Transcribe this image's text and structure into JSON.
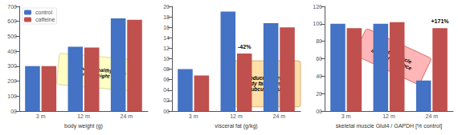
{
  "chart_data": [
    {
      "type": "bar",
      "categories": [
        "3 m",
        "12 m",
        "24 m"
      ],
      "series": [
        {
          "name": "control",
          "color": "#4472C4",
          "values": [
            300,
            430,
            620
          ]
        },
        {
          "name": "caffeine",
          "color": "#C0504D",
          "values": [
            300,
            425,
            610
          ]
        }
      ],
      "xlabel": "body weight (g)",
      "ylim": [
        0,
        700
      ],
      "yticks": [
        {
          "value": 0,
          "label": "00"
        },
        100,
        200,
        300,
        400,
        500,
        600,
        700
      ],
      "grid": false,
      "legend": "upper left",
      "annotations": [
        {
          "text": "normal (=healthy) diet,\nnormal weight gain"
        }
      ]
    },
    {
      "type": "bar",
      "categories": [
        "3 m",
        "12 m",
        "24 m"
      ],
      "series": [
        {
          "name": "control",
          "color": "#4472C4",
          "values": [
            8.0,
            19.0,
            16.8
          ]
        },
        {
          "name": "caffeine",
          "color": "#C0504D",
          "values": [
            6.8,
            11.0,
            16.0
          ]
        }
      ],
      "xlabel": "visceral fat (g/kg)",
      "ylim": [
        0,
        20
      ],
      "yticks": [
        {
          "value": 0,
          "label": "00"
        },
        {
          "value": 2,
          "label": "02"
        },
        {
          "value": 4,
          "label": "04"
        },
        {
          "value": 6,
          "label": "06"
        },
        {
          "value": 8,
          "label": "08"
        },
        10,
        12,
        14,
        16,
        18,
        20
      ],
      "grid": false,
      "annotations": [
        {
          "text": "-42%",
          "category": "12 m",
          "series": "caffeine"
        },
        {
          "text": "age induced increases\nin body fat are usually\nsubcutaneous"
        }
      ]
    },
    {
      "type": "bar",
      "categories": [
        "3 m",
        "12 m",
        "24 m"
      ],
      "series": [
        {
          "name": "control",
          "color": "#4472C4",
          "values": [
            100,
            100,
            35
          ]
        },
        {
          "name": "caffeine",
          "color": "#C0504D",
          "values": [
            95,
            102,
            95
          ]
        }
      ],
      "xlabel": "skeletal muscle Glut4 / GAPDH [% control]",
      "ylim": [
        0,
        120
      ],
      "yticks": [
        {
          "value": 0,
          "label": "00"
        },
        20,
        40,
        60,
        80,
        100,
        120
      ],
      "grid": false,
      "annotations": [
        {
          "text": "+171%",
          "category": "24 m",
          "series": "caffeine"
        },
        {
          "text": "skeletal muscle\ninsulin resistance"
        }
      ]
    }
  ]
}
